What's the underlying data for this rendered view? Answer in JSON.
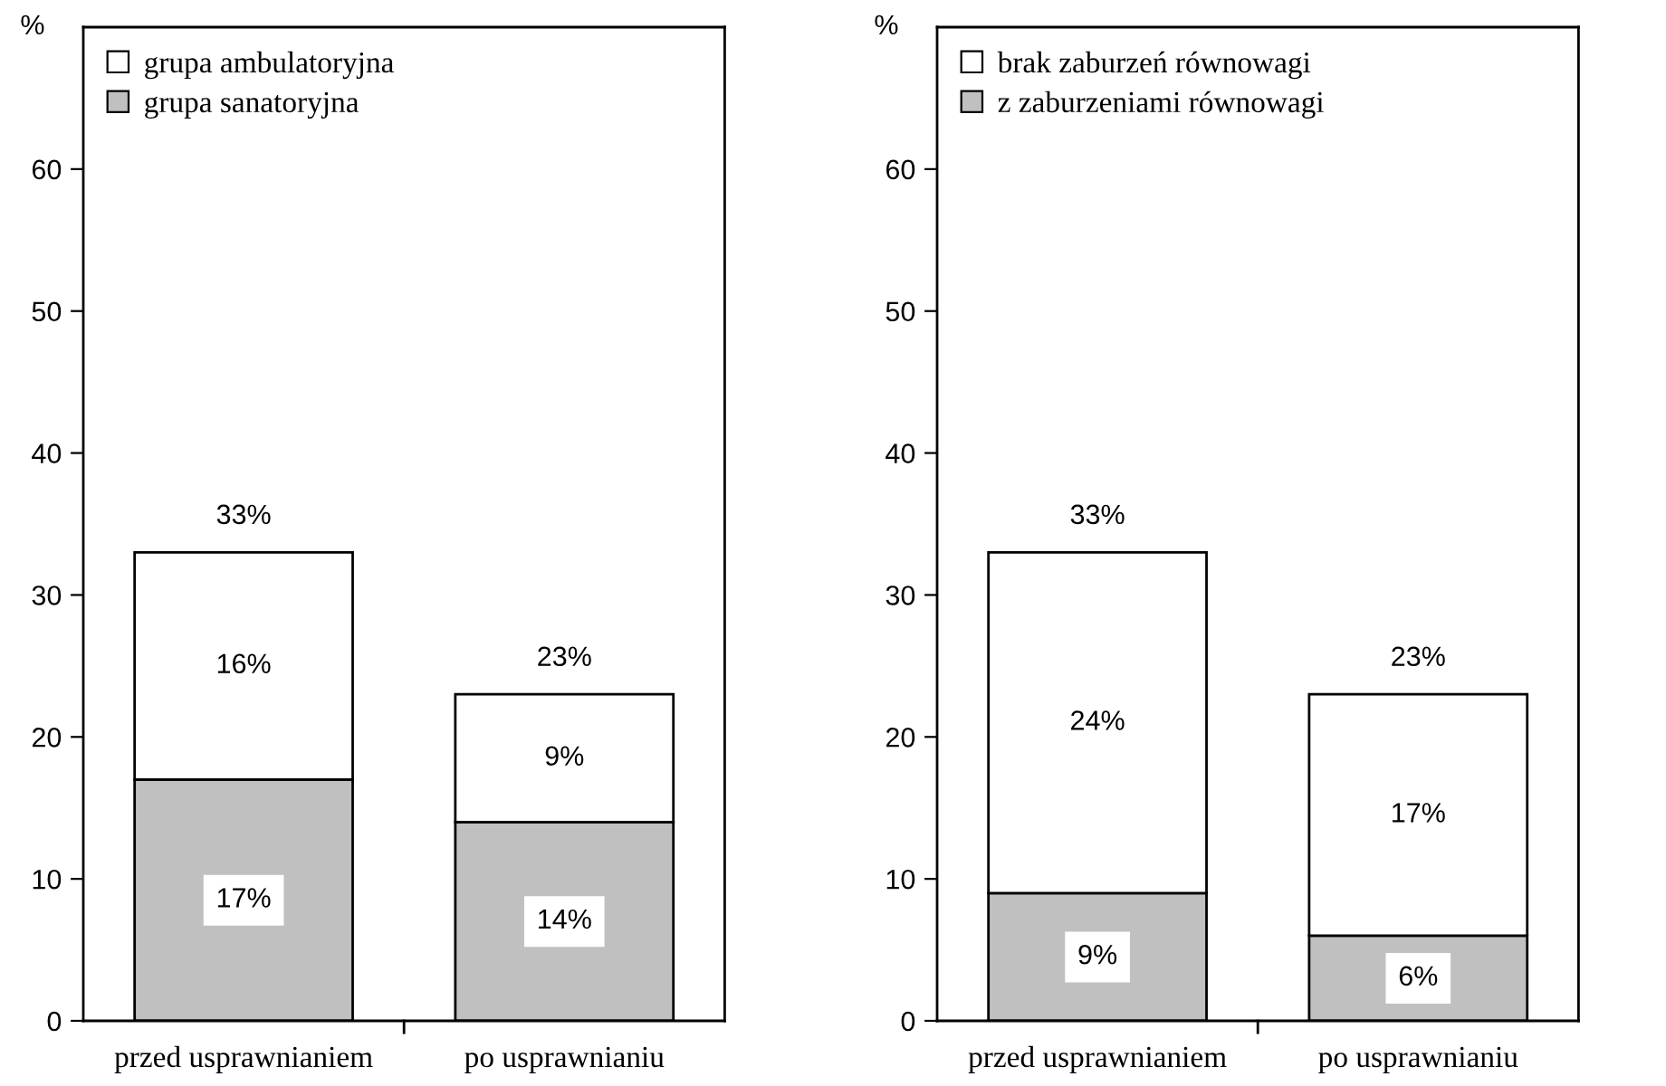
{
  "chart_data": [
    {
      "type": "bar",
      "stacked": true,
      "ylabel": "%",
      "categories": [
        "przed usprawnianiem",
        "po usprawnianiu"
      ],
      "ylim": [
        0,
        70
      ],
      "yticks": [
        0,
        10,
        20,
        30,
        40,
        50,
        60
      ],
      "grid": false,
      "legend": "top left",
      "series": [
        {
          "name": "grupa sanatoryjna",
          "color": "#c0c0c0",
          "values": [
            17,
            14
          ],
          "value_labels": [
            "17%",
            "14%"
          ]
        },
        {
          "name": "grupa ambulatoryjna",
          "color": "#ffffff",
          "values": [
            16,
            9
          ],
          "value_labels": [
            "16%",
            "9%"
          ]
        }
      ],
      "totals": [
        "33%",
        "23%"
      ]
    },
    {
      "type": "bar",
      "stacked": true,
      "ylabel": "%",
      "categories": [
        "przed usprawnianiem",
        "po usprawnianiu"
      ],
      "ylim": [
        0,
        70
      ],
      "yticks": [
        0,
        10,
        20,
        30,
        40,
        50,
        60
      ],
      "grid": false,
      "legend": "top left",
      "series": [
        {
          "name": "z zaburzeniami równowagi",
          "color": "#c0c0c0",
          "values": [
            9,
            6
          ],
          "value_labels": [
            "9%",
            "6%"
          ]
        },
        {
          "name": "brak zaburzeń równowagi",
          "color": "#ffffff",
          "values": [
            24,
            17
          ],
          "value_labels": [
            "24%",
            "17%"
          ]
        }
      ],
      "totals": [
        "33%",
        "23%"
      ]
    }
  ]
}
